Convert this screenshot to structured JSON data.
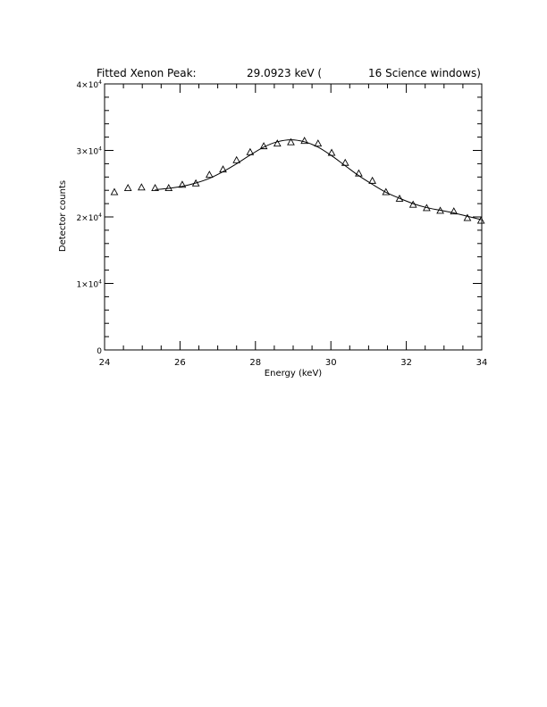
{
  "chart_data": {
    "type": "scatter",
    "title_parts": [
      "Fitted Xenon Peak:",
      "29.0923 keV (",
      "16 Science windows)"
    ],
    "title": "Fitted Xenon Peak:        29.0923 keV (        16 Science windows)",
    "xlabel": "Energy (keV)",
    "ylabel": "Detector counts",
    "xlim": [
      24,
      34
    ],
    "ylim": [
      0,
      40000
    ],
    "x_ticks": [
      24,
      26,
      28,
      30,
      32,
      34
    ],
    "x_tick_labels": [
      "24",
      "26",
      "28",
      "30",
      "32",
      "34"
    ],
    "y_ticks": [
      0,
      10000,
      20000,
      30000,
      40000
    ],
    "y_tick_labels": [
      {
        "mantissa": "0",
        "base": "",
        "exp": ""
      },
      {
        "mantissa": "1",
        "base": "×10",
        "exp": "4"
      },
      {
        "mantissa": "2",
        "base": "×10",
        "exp": "4"
      },
      {
        "mantissa": "3",
        "base": "×10",
        "exp": "4"
      },
      {
        "mantissa": "4",
        "base": "×10",
        "exp": "4"
      }
    ],
    "grid": false,
    "series": [
      {
        "marker": "triangle",
        "x": [
          24.26,
          24.62,
          24.98,
          25.34,
          25.7,
          26.06,
          26.42,
          26.78,
          27.14,
          27.5,
          27.86,
          28.22,
          28.58,
          28.94,
          29.3,
          29.66,
          30.02,
          30.38,
          30.74,
          31.1,
          31.46,
          31.82,
          32.18,
          32.54,
          32.9,
          33.26,
          33.62,
          33.98
        ],
        "y": [
          23700,
          24300,
          24400,
          24300,
          24300,
          24800,
          25000,
          26300,
          27100,
          28500,
          29700,
          30600,
          31000,
          31200,
          31400,
          31000,
          29600,
          28100,
          26500,
          25400,
          23700,
          22700,
          21800,
          21300,
          20900,
          20800,
          19800,
          19400
        ]
      },
      {
        "style": "line",
        "x": [
          25.34,
          25.7,
          26.06,
          26.42,
          26.78,
          27.14,
          27.5,
          27.86,
          28.22,
          28.58,
          28.94,
          29.3,
          29.66,
          30.02,
          30.38,
          30.74,
          31.1,
          31.46,
          31.82,
          32.18,
          32.54,
          32.9,
          33.26,
          33.62,
          33.98
        ],
        "y": [
          24100,
          24300,
          24600,
          25100,
          25800,
          26800,
          28000,
          29300,
          30500,
          31300,
          31600,
          31300,
          30500,
          29200,
          27700,
          26200,
          24900,
          23700,
          22800,
          22000,
          21400,
          21000,
          20600,
          20100,
          19600
        ]
      }
    ]
  }
}
